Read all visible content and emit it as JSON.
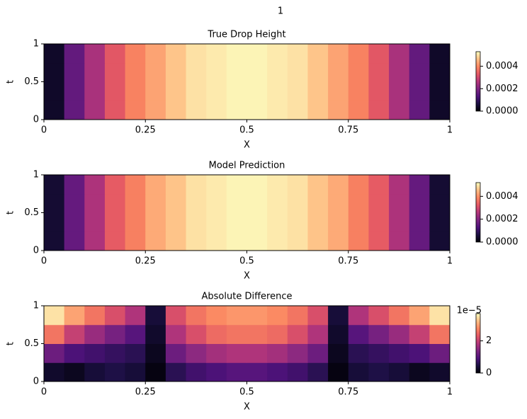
{
  "title": "1",
  "chart_data": [
    {
      "type": "heatmap",
      "title": "True Drop Height",
      "xlabel": "X",
      "ylabel": "t",
      "x": [
        0.025,
        0.075,
        0.125,
        0.175,
        0.225,
        0.275,
        0.325,
        0.375,
        0.425,
        0.475,
        0.525,
        0.575,
        0.625,
        0.675,
        0.725,
        0.775,
        0.825,
        0.875,
        0.925,
        0.975
      ],
      "y": [
        0.125,
        0.375,
        0.625,
        0.875
      ],
      "z": [
        [
          4e-05,
          0.00016,
          0.00025,
          0.00033,
          0.00039,
          0.00043,
          0.00047,
          0.0005,
          0.00051,
          0.00052,
          0.00052,
          0.00051,
          0.0005,
          0.00047,
          0.00043,
          0.00039,
          0.00033,
          0.00025,
          0.00016,
          4e-05
        ],
        [
          4e-05,
          0.00016,
          0.00025,
          0.00033,
          0.00039,
          0.00043,
          0.00047,
          0.0005,
          0.00051,
          0.00052,
          0.00052,
          0.00051,
          0.0005,
          0.00047,
          0.00043,
          0.00039,
          0.00033,
          0.00025,
          0.00016,
          4e-05
        ],
        [
          4e-05,
          0.00016,
          0.00025,
          0.00033,
          0.00039,
          0.00043,
          0.00047,
          0.0005,
          0.00051,
          0.00052,
          0.00052,
          0.00051,
          0.0005,
          0.00047,
          0.00043,
          0.00039,
          0.00033,
          0.00025,
          0.00016,
          4e-05
        ],
        [
          4e-05,
          0.00016,
          0.00025,
          0.00033,
          0.00039,
          0.00043,
          0.00047,
          0.0005,
          0.00051,
          0.00052,
          0.00052,
          0.00051,
          0.0005,
          0.00047,
          0.00043,
          0.00039,
          0.00033,
          0.00025,
          0.00016,
          4e-05
        ]
      ],
      "xlim": [
        0,
        1
      ],
      "ylim": [
        0,
        1
      ],
      "xticks": [
        0,
        0.25,
        0.5,
        0.75,
        1
      ],
      "yticks": [
        0,
        0.5,
        1
      ],
      "colormap": "magma",
      "clim": [
        0,
        0.00053
      ],
      "cticks": [
        {
          "value": 0,
          "label": "0.0000"
        },
        0.0002,
        0.0004
      ]
    },
    {
      "type": "heatmap",
      "title": "Model Prediction",
      "xlabel": "X",
      "ylabel": "t",
      "x": [
        0.025,
        0.075,
        0.125,
        0.175,
        0.225,
        0.275,
        0.325,
        0.375,
        0.425,
        0.475,
        0.525,
        0.575,
        0.625,
        0.675,
        0.725,
        0.775,
        0.825,
        0.875,
        0.925,
        0.975
      ],
      "y": [
        0.125,
        0.375,
        0.625,
        0.875
      ],
      "z": [
        [
          5e-05,
          0.00016,
          0.00025,
          0.00033,
          0.00038,
          0.00043,
          0.00046,
          0.00049,
          0.0005,
          0.00051,
          0.00051,
          0.0005,
          0.00049,
          0.00046,
          0.00043,
          0.00038,
          0.00033,
          0.00025,
          0.00016,
          5e-05
        ],
        [
          5e-05,
          0.00016,
          0.00025,
          0.00033,
          0.00038,
          0.00043,
          0.00046,
          0.00049,
          0.0005,
          0.00051,
          0.00051,
          0.0005,
          0.00049,
          0.00046,
          0.00043,
          0.00038,
          0.00033,
          0.00025,
          0.00016,
          5e-05
        ],
        [
          5e-05,
          0.00016,
          0.00025,
          0.00033,
          0.00038,
          0.00043,
          0.00046,
          0.00049,
          0.0005,
          0.00051,
          0.00051,
          0.0005,
          0.00049,
          0.00046,
          0.00043,
          0.00038,
          0.00033,
          0.00025,
          0.00016,
          5e-05
        ],
        [
          5e-05,
          0.00016,
          0.00025,
          0.00033,
          0.00038,
          0.00043,
          0.00046,
          0.00049,
          0.0005,
          0.00051,
          0.00051,
          0.0005,
          0.00049,
          0.00046,
          0.00043,
          0.00038,
          0.00033,
          0.00025,
          0.00016,
          5e-05
        ]
      ],
      "xlim": [
        0,
        1
      ],
      "ylim": [
        0,
        1
      ],
      "xticks": [
        0,
        0.25,
        0.5,
        0.75,
        1
      ],
      "yticks": [
        0,
        0.5,
        1
      ],
      "colormap": "magma",
      "clim": [
        0,
        0.00052
      ],
      "cticks": [
        {
          "value": 0,
          "label": "0.0000"
        },
        0.0002,
        0.0004
      ]
    },
    {
      "type": "heatmap",
      "title": "Absolute Difference",
      "xlabel": "X",
      "ylabel": "t",
      "x": [
        0.025,
        0.075,
        0.125,
        0.175,
        0.225,
        0.275,
        0.325,
        0.375,
        0.425,
        0.475,
        0.525,
        0.575,
        0.625,
        0.675,
        0.725,
        0.775,
        0.825,
        0.875,
        0.925,
        0.975
      ],
      "y": [
        0.125,
        0.375,
        0.625,
        0.875
      ],
      "z": [
        [
          3e-06,
          2e-06,
          4e-06,
          5e-06,
          4e-06,
          1e-06,
          6e-06,
          8e-06,
          9e-06,
          1e-05,
          1e-05,
          9e-06,
          8e-06,
          6e-06,
          1e-06,
          4e-06,
          5e-06,
          4e-06,
          2e-06,
          3e-06
        ],
        [
          1.2e-05,
          9e-06,
          8e-06,
          7e-06,
          6e-06,
          2e-06,
          1.2e-05,
          1.5e-05,
          1.7e-05,
          1.8e-05,
          1.8e-05,
          1.7e-05,
          1.5e-05,
          1.2e-05,
          2e-06,
          6e-06,
          7e-06,
          8e-06,
          9e-06,
          1.2e-05
        ],
        [
          2.6e-05,
          2e-05,
          1.6e-05,
          1.3e-05,
          1e-05,
          3e-06,
          1.8e-05,
          2.2e-05,
          2.5e-05,
          2.6e-05,
          2.6e-05,
          2.5e-05,
          2.2e-05,
          1.8e-05,
          3e-06,
          1e-05,
          1.3e-05,
          1.6e-05,
          2e-05,
          2.6e-05
        ],
        [
          3.5e-05,
          3e-05,
          2.6e-05,
          2.2e-05,
          1.8e-05,
          4e-06,
          2.2e-05,
          2.6e-05,
          2.8e-05,
          2.9e-05,
          2.9e-05,
          2.8e-05,
          2.6e-05,
          2.2e-05,
          4e-06,
          1.8e-05,
          2.2e-05,
          2.6e-05,
          3e-05,
          3.5e-05
        ]
      ],
      "xlim": [
        0,
        1
      ],
      "ylim": [
        0,
        1
      ],
      "xticks": [
        0,
        0.25,
        0.5,
        0.75,
        1
      ],
      "yticks": [
        0,
        0.5,
        1
      ],
      "colormap": "magma",
      "clim": [
        0,
        3.7e-05
      ],
      "cticks": [
        0,
        {
          "value": 2e-05,
          "label": "2"
        }
      ],
      "coffset": "1e−5"
    }
  ]
}
